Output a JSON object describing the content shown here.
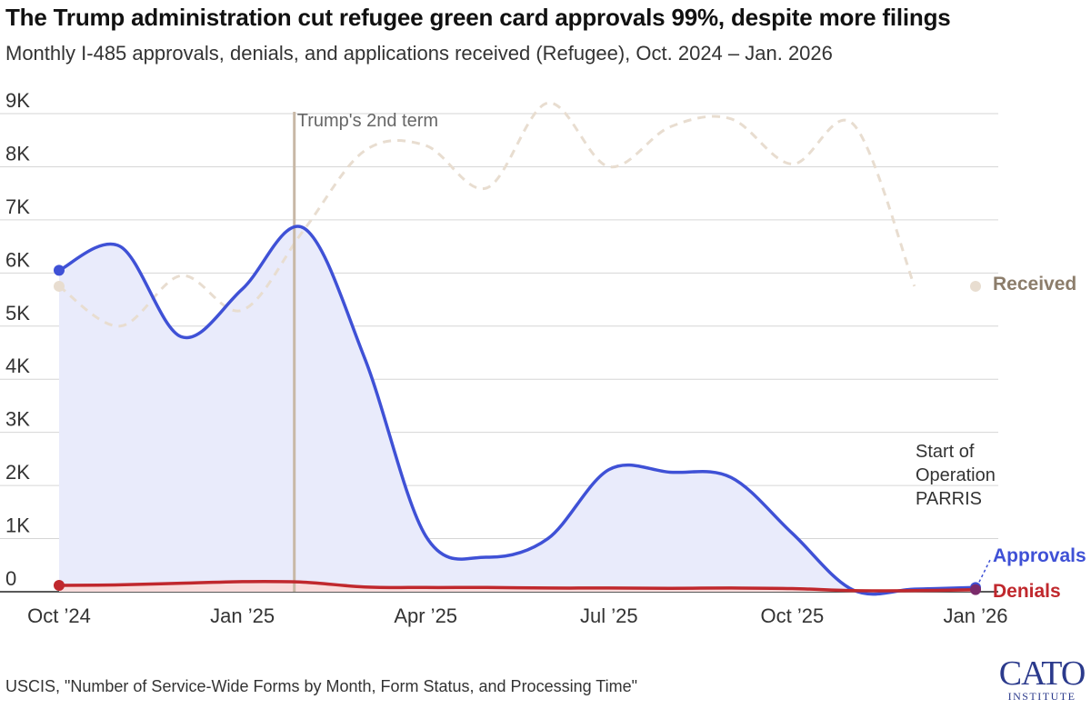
{
  "title": "The Trump administration cut refugee green card approvals 99%, despite more filings",
  "subtitle": "Monthly I-485 approvals, denials, and applications received (Refugee), Oct. 2024 – Jan. 2026",
  "source": "USCIS, \"Number of Service-Wide Forms by Month, Form Status, and Processing Time\"",
  "logo": {
    "main": "CATO",
    "sub": "INSTITUTE"
  },
  "colors": {
    "approvals": "#3f51d6",
    "approvals_fill": "#e9ebfb",
    "denials": "#c0282d",
    "denials_fill": "#f8dcdc",
    "received": "#e8ddd0",
    "received_label": "#8c7d6b",
    "marker": "#c8b8a6",
    "grid": "#d6d6d6"
  },
  "chart_data": {
    "type": "line",
    "x": [
      "Oct '24",
      "Nov '24",
      "Dec '24",
      "Jan '25",
      "Feb '25",
      "Mar '25",
      "Apr '25",
      "May '25",
      "Jun '25",
      "Jul '25",
      "Aug '25",
      "Sep '25",
      "Oct '25",
      "Nov '25",
      "Dec '25",
      "Jan '26"
    ],
    "x_tick_labels": [
      "Oct ’24",
      "Jan ’25",
      "Apr ’25",
      "Jul ’25",
      "Oct ’25",
      "Jan ’26"
    ],
    "x_tick_index": [
      0,
      3,
      6,
      9,
      12,
      15
    ],
    "y_ticks": [
      0,
      1000,
      2000,
      3000,
      4000,
      5000,
      6000,
      7000,
      8000,
      9000
    ],
    "y_tick_labels": [
      "0",
      "1K",
      "2K",
      "3K",
      "4K",
      "5K",
      "6K",
      "7K",
      "8K",
      "9K"
    ],
    "ylim": [
      0,
      9000
    ],
    "grid": true,
    "series": [
      {
        "name": "Approvals",
        "style": "solid area",
        "values": [
          6050,
          6500,
          4800,
          5700,
          6850,
          4400,
          1050,
          650,
          1000,
          2300,
          2250,
          2150,
          1100,
          30,
          50,
          80
        ]
      },
      {
        "name": "Denials",
        "style": "solid area",
        "values": [
          120,
          130,
          160,
          190,
          180,
          90,
          80,
          80,
          70,
          70,
          65,
          70,
          60,
          20,
          20,
          40
        ]
      },
      {
        "name": "Received",
        "style": "dashed",
        "values": [
          5750,
          5000,
          5950,
          5300,
          6800,
          8300,
          8400,
          7600,
          9200,
          8000,
          8750,
          8900,
          8050,
          8800,
          5750,
          5750
        ]
      }
    ],
    "annotations": [
      {
        "text": "Trump's 2nd term",
        "x_index": 3.85
      },
      {
        "lines": [
          "Start of",
          "Operation",
          "PARRIS"
        ],
        "x_index": 14.6
      }
    ]
  }
}
